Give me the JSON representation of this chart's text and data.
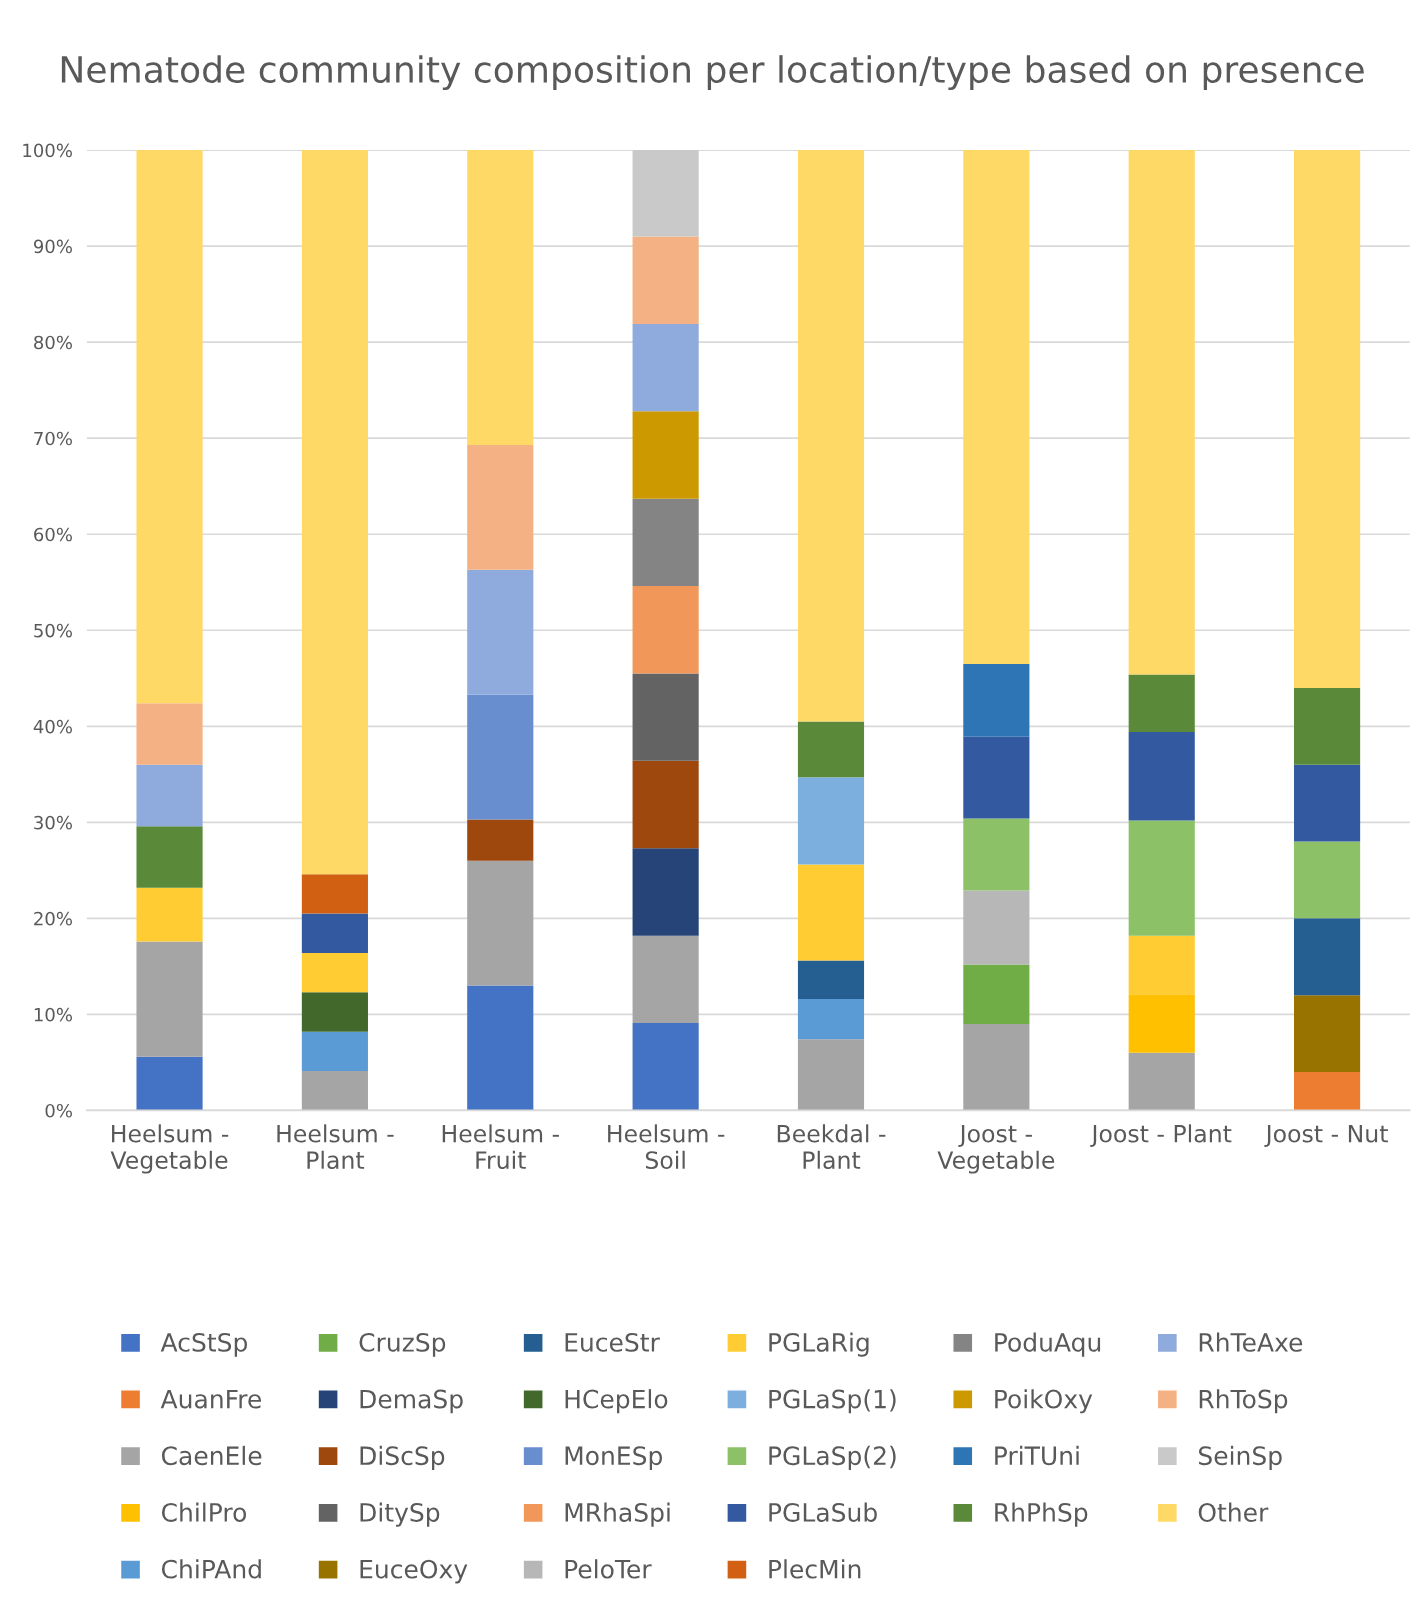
{
  "chart_data": {
    "type": "bar",
    "stacked": true,
    "title": "Nematode community composition per location/type based on presence",
    "categories": [
      "Heelsum - Vegetable",
      "Heelsum - Plant",
      "Heelsum - Fruit",
      "Heelsum - Soil",
      "Beekdal - Plant",
      "Joost - Vegetable",
      "Joost - Plant",
      "Joost - Nut"
    ],
    "ylim": [
      0,
      100
    ],
    "yticks": [
      {
        "value": 0,
        "label": "0%"
      },
      {
        "value": 10,
        "label": "10%"
      },
      {
        "value": 20,
        "label": "20%"
      },
      {
        "value": 30,
        "label": "30%"
      },
      {
        "value": 40,
        "label": "40%"
      },
      {
        "value": 50,
        "label": "50%"
      },
      {
        "value": 60,
        "label": "60%"
      },
      {
        "value": 70,
        "label": "70%"
      },
      {
        "value": 80,
        "label": "80%"
      },
      {
        "value": 90,
        "label": "90%"
      },
      {
        "value": 100,
        "label": "100%"
      }
    ],
    "grid": "y",
    "legend": "bottom",
    "series": [
      {
        "name": "AcStSp",
        "color": "#4472c4",
        "values": [
          5.6,
          0,
          13.0,
          9.1,
          0,
          0,
          0,
          0
        ]
      },
      {
        "name": "AuanFre",
        "color": "#ed7d31",
        "values": [
          0,
          0,
          0,
          0,
          0,
          0,
          0,
          4.0
        ]
      },
      {
        "name": "CaenEle",
        "color": "#a5a5a5",
        "values": [
          12.0,
          4.1,
          13.0,
          9.1,
          7.4,
          9.0,
          6.0,
          0
        ]
      },
      {
        "name": "ChilPro",
        "color": "#ffc000",
        "values": [
          0,
          0,
          0,
          0,
          0,
          0,
          6.1,
          0
        ]
      },
      {
        "name": "ChiPAnd",
        "color": "#5b9bd5",
        "values": [
          0,
          4.1,
          0,
          0,
          4.2,
          0,
          0,
          0
        ]
      },
      {
        "name": "CruzSp",
        "color": "#70ad47",
        "values": [
          0,
          0,
          0,
          0,
          0,
          6.2,
          0,
          0
        ]
      },
      {
        "name": "DemaSp",
        "color": "#264478",
        "values": [
          0,
          0,
          0,
          9.1,
          0,
          0,
          0,
          0
        ]
      },
      {
        "name": "DiScSp",
        "color": "#9e480e",
        "values": [
          0,
          0,
          4.3,
          9.1,
          0,
          0,
          0,
          0
        ]
      },
      {
        "name": "DitySp",
        "color": "#636363",
        "values": [
          0,
          0,
          0,
          9.1,
          0,
          0,
          0,
          0
        ]
      },
      {
        "name": "EuceOxy",
        "color": "#997300",
        "values": [
          0,
          0,
          0,
          0,
          0,
          0,
          0,
          8.0
        ]
      },
      {
        "name": "EuceStr",
        "color": "#255e91",
        "values": [
          0,
          0,
          0,
          0,
          4.0,
          0,
          0,
          8.0
        ]
      },
      {
        "name": "HCepElo",
        "color": "#43682b",
        "values": [
          0,
          4.1,
          0,
          0,
          0,
          0,
          0,
          0
        ]
      },
      {
        "name": "MonESp",
        "color": "#698ed0",
        "values": [
          0,
          0,
          13.0,
          0,
          0,
          0,
          0,
          0
        ]
      },
      {
        "name": "MRhaSpi",
        "color": "#f1975a",
        "values": [
          0,
          0,
          0,
          9.1,
          0,
          0,
          0,
          0
        ]
      },
      {
        "name": "PeloTer",
        "color": "#b7b7b7",
        "values": [
          0,
          0,
          0,
          0,
          0,
          7.7,
          0,
          0
        ]
      },
      {
        "name": "PGLaRig",
        "color": "#ffcd33",
        "values": [
          5.6,
          4.1,
          0,
          0,
          10.0,
          0,
          6.1,
          0
        ]
      },
      {
        "name": "PGLaSp(1)",
        "color": "#7cafdd",
        "values": [
          0,
          0,
          0,
          0,
          9.1,
          0,
          0,
          0
        ]
      },
      {
        "name": "PGLaSp(2)",
        "color": "#8cc168",
        "values": [
          0,
          0,
          0,
          0,
          0,
          7.5,
          12.0,
          8.0
        ]
      },
      {
        "name": "PGLaSub",
        "color": "#335aa1",
        "values": [
          0,
          4.1,
          0,
          0,
          0,
          8.5,
          9.2,
          8.0
        ]
      },
      {
        "name": "PlecMin",
        "color": "#d26012",
        "values": [
          0,
          4.1,
          0,
          0,
          0,
          0,
          0,
          0
        ]
      },
      {
        "name": "PoduAqu",
        "color": "#848484",
        "values": [
          0,
          0,
          0,
          9.1,
          0,
          0,
          0,
          0
        ]
      },
      {
        "name": "PoikOxy",
        "color": "#cc9a00",
        "values": [
          0,
          0,
          0,
          9.1,
          0,
          0,
          0,
          0
        ]
      },
      {
        "name": "PriTUni",
        "color": "#2e75b6",
        "values": [
          0,
          0,
          0,
          0,
          0,
          7.6,
          0,
          0
        ]
      },
      {
        "name": "RhPhSp",
        "color": "#5a8a39",
        "values": [
          6.4,
          0,
          0,
          0,
          5.8,
          0,
          6.0,
          8.0
        ]
      },
      {
        "name": "RhTeAxe",
        "color": "#8faadc",
        "values": [
          6.4,
          0,
          13.0,
          9.1,
          0,
          0,
          0,
          0
        ]
      },
      {
        "name": "RhToSp",
        "color": "#f4b183",
        "values": [
          6.4,
          0,
          13.0,
          9.1,
          0,
          0,
          0,
          0
        ]
      },
      {
        "name": "SeinSp",
        "color": "#c9c9c9",
        "values": [
          0,
          0,
          0,
          9.0,
          0,
          0,
          0,
          0
        ]
      },
      {
        "name": "Other",
        "color": "#ffd966",
        "values": [
          57.6,
          75.4,
          30.7,
          0,
          59.5,
          53.5,
          54.6,
          56.0
        ]
      }
    ]
  }
}
